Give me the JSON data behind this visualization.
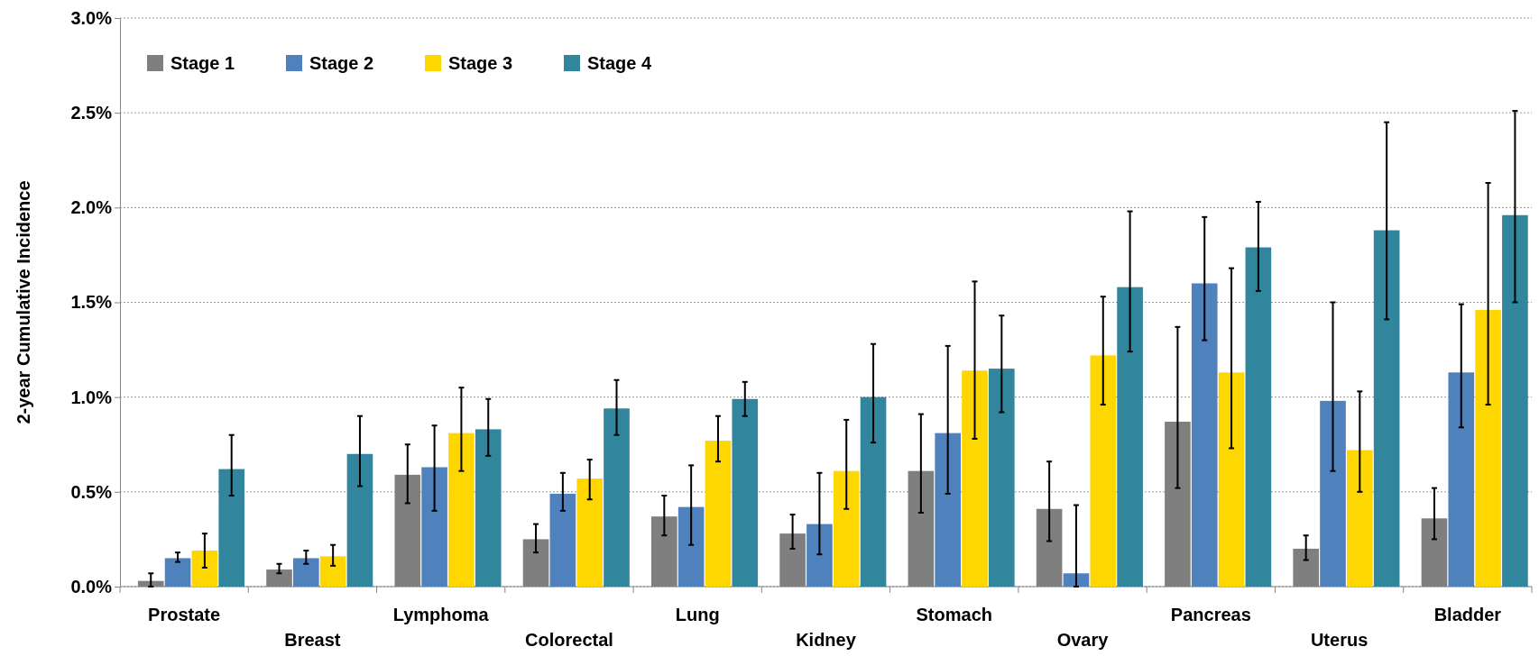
{
  "chart_data": {
    "type": "bar",
    "ylabel": "2-year Cumulative Incidence",
    "categories": [
      "Prostate",
      "Breast",
      "Lymphoma",
      "Colorectal",
      "Lung",
      "Kidney",
      "Stomach",
      "Ovary",
      "Pancreas",
      "Uterus",
      "Bladder"
    ],
    "series": [
      {
        "name": "Stage 1",
        "color": "#7f7f7f",
        "values": [
          0.03,
          0.09,
          0.59,
          0.25,
          0.37,
          0.28,
          0.61,
          0.41,
          0.87,
          0.2,
          0.36
        ],
        "errors": [
          [
            0.0,
            0.07
          ],
          [
            0.07,
            0.12
          ],
          [
            0.44,
            0.75
          ],
          [
            0.18,
            0.33
          ],
          [
            0.27,
            0.48
          ],
          [
            0.2,
            0.38
          ],
          [
            0.39,
            0.91
          ],
          [
            0.24,
            0.66
          ],
          [
            0.52,
            1.37
          ],
          [
            0.14,
            0.27
          ],
          [
            0.25,
            0.52
          ]
        ]
      },
      {
        "name": "Stage 2",
        "color": "#4f81bd",
        "values": [
          0.15,
          0.15,
          0.63,
          0.49,
          0.42,
          0.33,
          0.81,
          0.07,
          1.6,
          0.98,
          1.13
        ],
        "errors": [
          [
            0.13,
            0.18
          ],
          [
            0.12,
            0.19
          ],
          [
            0.4,
            0.85
          ],
          [
            0.4,
            0.6
          ],
          [
            0.22,
            0.64
          ],
          [
            0.17,
            0.6
          ],
          [
            0.49,
            1.27
          ],
          [
            0.0,
            0.43
          ],
          [
            1.3,
            1.95
          ],
          [
            0.61,
            1.5
          ],
          [
            0.84,
            1.49
          ]
        ]
      },
      {
        "name": "Stage 3",
        "color": "#ffd700",
        "values": [
          0.19,
          0.16,
          0.81,
          0.57,
          0.77,
          0.61,
          1.14,
          1.22,
          1.13,
          0.72,
          1.46
        ],
        "errors": [
          [
            0.1,
            0.28
          ],
          [
            0.11,
            0.22
          ],
          [
            0.61,
            1.05
          ],
          [
            0.46,
            0.67
          ],
          [
            0.66,
            0.9
          ],
          [
            0.41,
            0.88
          ],
          [
            0.78,
            1.61
          ],
          [
            0.96,
            1.53
          ],
          [
            0.73,
            1.68
          ],
          [
            0.5,
            1.03
          ],
          [
            0.96,
            2.13
          ]
        ]
      },
      {
        "name": "Stage 4",
        "color": "#31859c",
        "values": [
          0.62,
          0.7,
          0.83,
          0.94,
          0.99,
          1.0,
          1.15,
          1.58,
          1.79,
          1.88,
          1.96
        ],
        "errors": [
          [
            0.48,
            0.8
          ],
          [
            0.53,
            0.9
          ],
          [
            0.69,
            0.99
          ],
          [
            0.8,
            1.09
          ],
          [
            0.9,
            1.08
          ],
          [
            0.76,
            1.28
          ],
          [
            0.92,
            1.43
          ],
          [
            1.24,
            1.98
          ],
          [
            1.56,
            2.03
          ],
          [
            1.41,
            2.45
          ],
          [
            1.5,
            2.51
          ]
        ]
      }
    ],
    "ylim": [
      0,
      3
    ],
    "yticks": [
      {
        "value": 0,
        "label": "0.0%"
      },
      {
        "value": 0.5,
        "label": "0.5%"
      },
      {
        "value": 1,
        "label": "1.0%"
      },
      {
        "value": 1.5,
        "label": "1.5%"
      },
      {
        "value": 2,
        "label": "2.0%"
      },
      {
        "value": 2.5,
        "label": "2.5%"
      },
      {
        "value": 3,
        "label": "3.0%"
      }
    ],
    "grid": "y",
    "legend": "top left"
  }
}
